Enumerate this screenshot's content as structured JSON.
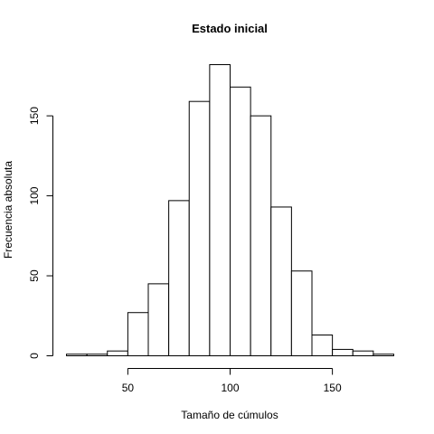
{
  "chart_data": {
    "type": "bar",
    "title": "Estado inicial",
    "xlabel": "Tamaño de cúmulos",
    "ylabel": "Frecuencia absoluta",
    "bin_edges": [
      20,
      30,
      40,
      50,
      60,
      70,
      80,
      90,
      100,
      110,
      120,
      130,
      140,
      150,
      160,
      170,
      180
    ],
    "values": [
      1,
      1,
      3,
      27,
      45,
      97,
      159,
      182,
      168,
      150,
      93,
      53,
      13,
      4,
      3,
      1
    ],
    "xlim": [
      20,
      180
    ],
    "ylim": [
      0,
      182
    ],
    "xticks": [
      50,
      100,
      150
    ],
    "yticks": [
      0,
      50,
      100,
      150
    ],
    "grid": false
  }
}
